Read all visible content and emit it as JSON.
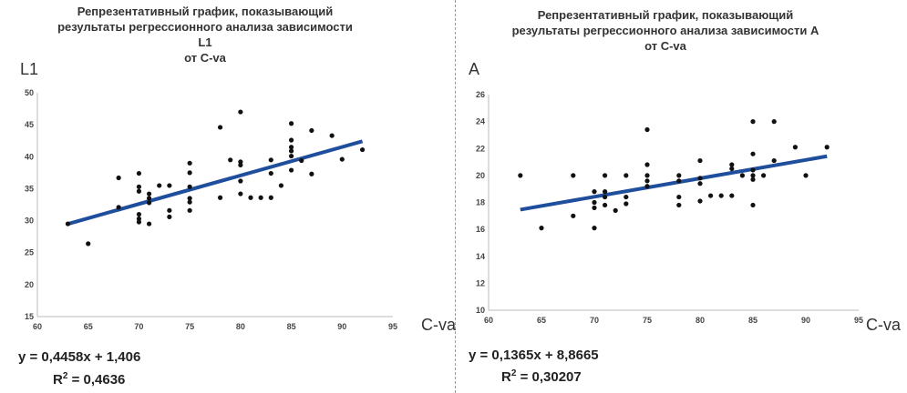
{
  "chart_data": [
    {
      "type": "scatter",
      "title_lines": [
        "Репрезентативный график, показывающий",
        "результаты регрессионного анализа зависимости L1",
        "от C-va"
      ],
      "ylabel": "L1",
      "xlabel": "C-va",
      "xlim": [
        60,
        95
      ],
      "ylim": [
        15,
        50
      ],
      "xticks": [
        60,
        65,
        70,
        75,
        80,
        85,
        90,
        95
      ],
      "yticks": [
        15,
        20,
        25,
        30,
        35,
        40,
        45,
        50
      ],
      "grid": false,
      "points": [
        [
          63,
          29.5
        ],
        [
          65,
          26.4
        ],
        [
          68,
          36.7
        ],
        [
          68,
          32.1
        ],
        [
          70,
          37.4
        ],
        [
          70,
          35.3
        ],
        [
          70,
          34.6
        ],
        [
          70,
          31
        ],
        [
          70,
          30.3
        ],
        [
          70,
          29.8
        ],
        [
          71,
          34.2
        ],
        [
          71,
          33.5
        ],
        [
          71,
          32.8
        ],
        [
          71,
          29.5
        ],
        [
          72,
          35.5
        ],
        [
          73,
          35.5
        ],
        [
          73,
          31.6
        ],
        [
          73,
          30.6
        ],
        [
          75,
          39
        ],
        [
          75,
          37.5
        ],
        [
          75,
          35.3
        ],
        [
          75,
          33.5
        ],
        [
          75,
          32.9
        ],
        [
          75,
          31.6
        ],
        [
          78,
          44.6
        ],
        [
          78,
          33.6
        ],
        [
          79,
          39.5
        ],
        [
          80,
          47
        ],
        [
          80,
          39.2
        ],
        [
          80,
          38.7
        ],
        [
          80,
          36.2
        ],
        [
          80,
          34.2
        ],
        [
          81,
          33.6
        ],
        [
          82,
          33.6
        ],
        [
          83,
          39.5
        ],
        [
          83,
          37.4
        ],
        [
          83,
          33.6
        ],
        [
          84,
          35.5
        ],
        [
          85,
          45.2
        ],
        [
          85,
          42.6
        ],
        [
          85,
          41.5
        ],
        [
          85,
          40.9
        ],
        [
          85,
          40.1
        ],
        [
          85,
          37.9
        ],
        [
          86,
          39.4
        ],
        [
          87,
          44.1
        ],
        [
          87,
          37.3
        ],
        [
          89,
          43.3
        ],
        [
          90,
          39.6
        ],
        [
          92,
          41.1
        ]
      ],
      "trendline": {
        "slope": 0.4458,
        "intercept": 1.406,
        "color": "#1f4e9c"
      },
      "equation": "y = 0,4458x + 1,406",
      "r2_label": "R",
      "r2_value": "= 0,4636",
      "point_color": "#111111"
    },
    {
      "type": "scatter",
      "title_lines": [
        "Репрезентативный график, показывающий",
        "результаты регрессионного анализа зависимости А",
        "от C-va"
      ],
      "ylabel": "A",
      "xlabel": "C-va",
      "xlim": [
        60,
        95
      ],
      "ylim": [
        10,
        26
      ],
      "xticks": [
        60,
        65,
        70,
        75,
        80,
        85,
        90,
        95
      ],
      "yticks": [
        10,
        12,
        14,
        16,
        18,
        20,
        22,
        24,
        26
      ],
      "grid": false,
      "points": [
        [
          63,
          20
        ],
        [
          65,
          16.1
        ],
        [
          68,
          20
        ],
        [
          68,
          17
        ],
        [
          70,
          18.8
        ],
        [
          70,
          18
        ],
        [
          70,
          17.6
        ],
        [
          70,
          16.1
        ],
        [
          71,
          20
        ],
        [
          71,
          18.8
        ],
        [
          71,
          18.4
        ],
        [
          71,
          17.8
        ],
        [
          72,
          17.4
        ],
        [
          73,
          20
        ],
        [
          73,
          18.4
        ],
        [
          73,
          17.9
        ],
        [
          75,
          23.4
        ],
        [
          75,
          20.8
        ],
        [
          75,
          20
        ],
        [
          75,
          19.6
        ],
        [
          75,
          19.2
        ],
        [
          78,
          20
        ],
        [
          78,
          19.6
        ],
        [
          78,
          18.4
        ],
        [
          78,
          17.8
        ],
        [
          80,
          21.1
        ],
        [
          80,
          19.8
        ],
        [
          80,
          19.4
        ],
        [
          80,
          18.1
        ],
        [
          81,
          18.5
        ],
        [
          82,
          18.5
        ],
        [
          83,
          20.8
        ],
        [
          83,
          20.5
        ],
        [
          83,
          18.5
        ],
        [
          84,
          20
        ],
        [
          85,
          24
        ],
        [
          85,
          21.6
        ],
        [
          85,
          20.4
        ],
        [
          85,
          20
        ],
        [
          85,
          19.7
        ],
        [
          85,
          17.8
        ],
        [
          86,
          20
        ],
        [
          87,
          24
        ],
        [
          87,
          21.1
        ],
        [
          89,
          22.1
        ],
        [
          90,
          20
        ],
        [
          92,
          22.1
        ]
      ],
      "trendline": {
        "slope": 0.1365,
        "intercept": 8.8665,
        "color": "#1f4e9c"
      },
      "equation": "y = 0,1365x + 8,8665",
      "r2_label": "R",
      "r2_value": "= 0,30207",
      "point_color": "#111111"
    }
  ]
}
